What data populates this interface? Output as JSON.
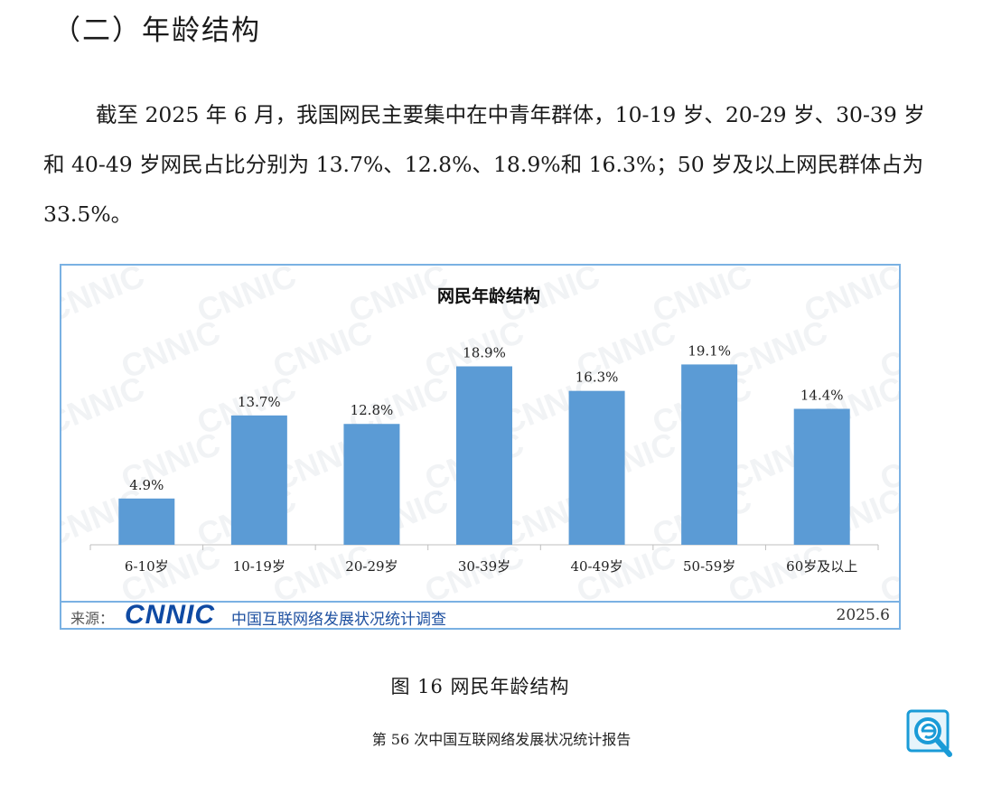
{
  "heading": "（二）年龄结构",
  "paragraph": "截至 2025 年 6 月，我国网民主要集中在中青年群体，10-19 岁、20-29 岁、30-39 岁和 40-49 岁网民占比分别为 13.7%、12.8%、18.9%和 16.3%；50 岁及以上网民群体占为 33.5%。",
  "watermark_text": "CNNIC",
  "source": {
    "label": "来源：",
    "logo_text": "CNNIC",
    "description": "中国互联网络发展状况统计调查",
    "date": "2025.6"
  },
  "caption": "图  16    网民年龄结构",
  "footer": "第 56 次中国互联网络发展状况统计报告",
  "corner_logo_icon": "magnifier-e-logo-icon",
  "colors": {
    "bar": "#5b9bd5",
    "border": "#7ab1e3",
    "logo": "#0f4aa3"
  },
  "chart_data": {
    "type": "bar",
    "title": "网民年龄结构",
    "categories": [
      "6-10岁",
      "10-19岁",
      "20-29岁",
      "30-39岁",
      "40-49岁",
      "50-59岁",
      "60岁及以上"
    ],
    "values": [
      4.9,
      13.7,
      12.8,
      18.9,
      16.3,
      19.1,
      14.4
    ],
    "data_labels": [
      "4.9%",
      "13.7%",
      "12.8%",
      "18.9%",
      "16.3%",
      "19.1%",
      "14.4%"
    ],
    "ylim": [
      0,
      20
    ],
    "grid": false,
    "legend": "none"
  }
}
